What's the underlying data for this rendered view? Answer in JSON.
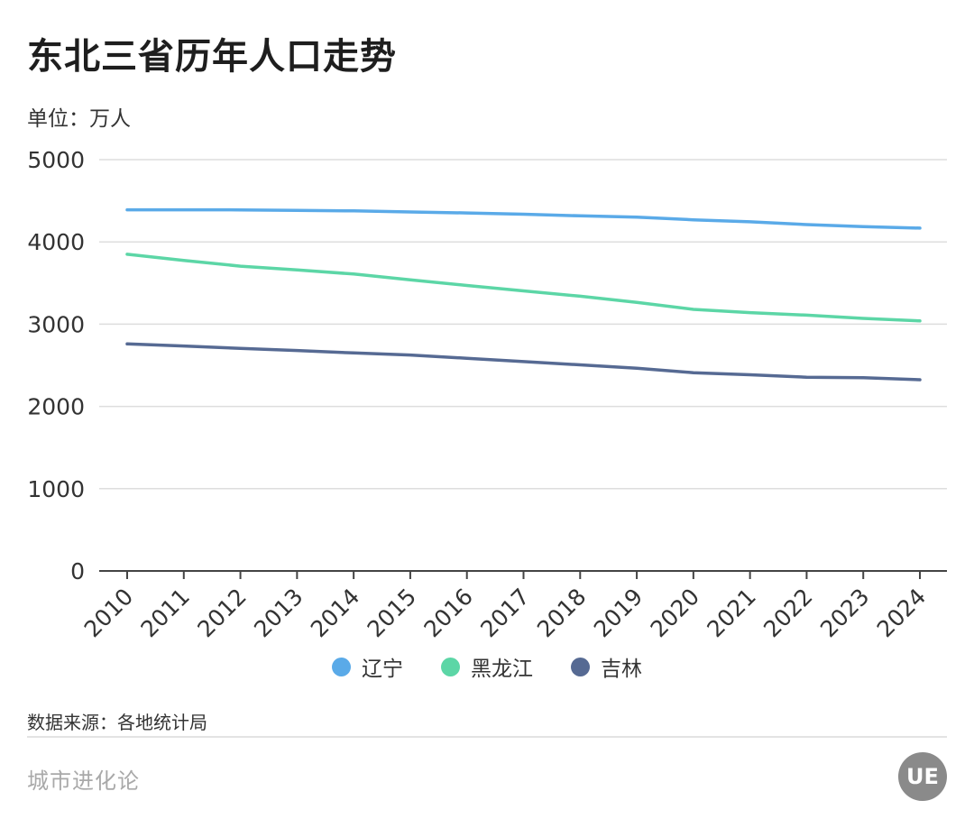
{
  "header": {
    "title": "东北三省历年人口走势",
    "unit": "单位：万人"
  },
  "footer": {
    "source": "数据来源：各地统计局",
    "brand": "城市进化论",
    "logo_text": "UE"
  },
  "chart_data": {
    "type": "line",
    "title": "东北三省历年人口走势",
    "ylabel": "单位：万人",
    "xlabel": "",
    "ylim": [
      0,
      5000
    ],
    "yticks": [
      0,
      1000,
      2000,
      3000,
      4000,
      5000
    ],
    "grid": true,
    "legend_position": "bottom",
    "x": [
      "2010",
      "2011",
      "2012",
      "2013",
      "2014",
      "2015",
      "2016",
      "2017",
      "2018",
      "2019",
      "2020",
      "2021",
      "2022",
      "2023",
      "2024"
    ],
    "series": [
      {
        "name": "辽宁",
        "color": "#5aaae8",
        "values": [
          4390,
          4390,
          4389,
          4383,
          4377,
          4364,
          4352,
          4337,
          4317,
          4300,
          4269,
          4245,
          4210,
          4186,
          4168
        ]
      },
      {
        "name": "黑龙江",
        "color": "#5cd6a6",
        "values": [
          3850,
          3775,
          3705,
          3660,
          3610,
          3540,
          3470,
          3405,
          3340,
          3265,
          3180,
          3140,
          3110,
          3070,
          3040
        ]
      },
      {
        "name": "吉林",
        "color": "#566a93",
        "values": [
          2760,
          2735,
          2705,
          2680,
          2650,
          2625,
          2585,
          2545,
          2505,
          2465,
          2410,
          2385,
          2355,
          2350,
          2325
        ]
      }
    ]
  }
}
